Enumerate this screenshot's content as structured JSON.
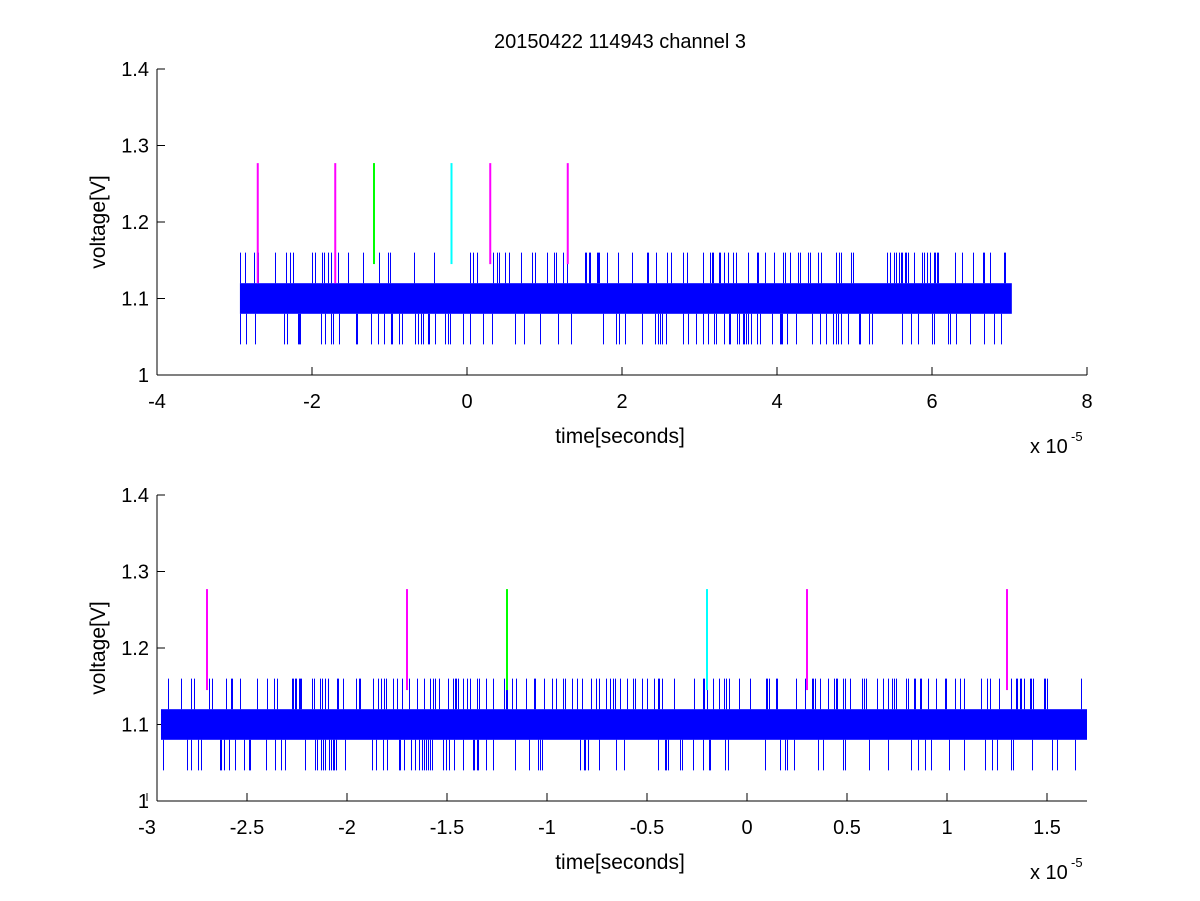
{
  "figure": {
    "title": "20150422 114943 channel 3"
  },
  "chart_data": [
    {
      "type": "line",
      "title": "20150422 114943 channel 3",
      "xlabel": "time[seconds]",
      "ylabel": "voltage[V]",
      "x_scale_label": "x 10",
      "x_scale_exponent": "-5",
      "xlim": [
        -4,
        8
      ],
      "ylim": [
        1,
        1.4
      ],
      "xticks": [
        -4,
        -2,
        0,
        2,
        4,
        6,
        8
      ],
      "xtick_labels": [
        "-4",
        "-2",
        "0",
        "2",
        "4",
        "6",
        "8"
      ],
      "yticks": [
        1,
        1.1,
        1.2,
        1.3,
        1.4
      ],
      "ytick_labels": [
        "1",
        "1.1",
        "1.2",
        "1.3",
        "1.4"
      ],
      "grid": false,
      "signal": {
        "color": "#0000ff",
        "x_start": -2.93,
        "x_end": 7.03,
        "band": [
          1.08,
          1.12
        ],
        "spike_high": 1.16,
        "spike_low": 1.04
      },
      "markers": [
        {
          "x": -2.7,
          "y_min": 1.12,
          "y_max": 1.277,
          "color": "#ff00ff"
        },
        {
          "x": -1.7,
          "y_min": 1.12,
          "y_max": 1.277,
          "color": "#ff00ff"
        },
        {
          "x": -1.2,
          "y_min": 1.145,
          "y_max": 1.277,
          "color": "#00ff00"
        },
        {
          "x": -0.2,
          "y_min": 1.145,
          "y_max": 1.277,
          "color": "#00ffff"
        },
        {
          "x": 0.3,
          "y_min": 1.145,
          "y_max": 1.277,
          "color": "#ff00ff"
        },
        {
          "x": 1.3,
          "y_min": 1.145,
          "y_max": 1.277,
          "color": "#ff00ff"
        }
      ]
    },
    {
      "type": "line",
      "title": "",
      "xlabel": "time[seconds]",
      "ylabel": "voltage[V]",
      "x_scale_label": "x 10",
      "x_scale_exponent": "-5",
      "xlim": [
        -2.95,
        1.7
      ],
      "ylim": [
        1,
        1.4
      ],
      "xticks": [
        -3,
        -2.5,
        -2,
        -1.5,
        -1,
        -0.5,
        0,
        0.5,
        1,
        1.5
      ],
      "xtick_labels": [
        "-3",
        "-2.5",
        "-2",
        "-1.5",
        "-1",
        "-0.5",
        "0",
        "0.5",
        "1",
        "1.5"
      ],
      "yticks": [
        1,
        1.1,
        1.2,
        1.3,
        1.4
      ],
      "ytick_labels": [
        "1",
        "1.1",
        "1.2",
        "1.3",
        "1.4"
      ],
      "grid": false,
      "signal": {
        "color": "#0000ff",
        "x_start": -2.93,
        "x_end": 1.7,
        "band": [
          1.08,
          1.12
        ],
        "spike_high": 1.16,
        "spike_low": 1.04
      },
      "markers": [
        {
          "x": -2.7,
          "y_min": 1.145,
          "y_max": 1.277,
          "color": "#ff00ff"
        },
        {
          "x": -1.7,
          "y_min": 1.145,
          "y_max": 1.277,
          "color": "#ff00ff"
        },
        {
          "x": -1.2,
          "y_min": 1.145,
          "y_max": 1.277,
          "color": "#00ff00"
        },
        {
          "x": -0.2,
          "y_min": 1.145,
          "y_max": 1.277,
          "color": "#00ffff"
        },
        {
          "x": 0.3,
          "y_min": 1.145,
          "y_max": 1.277,
          "color": "#ff00ff"
        },
        {
          "x": 1.3,
          "y_min": 1.145,
          "y_max": 1.277,
          "color": "#ff00ff"
        }
      ]
    }
  ]
}
